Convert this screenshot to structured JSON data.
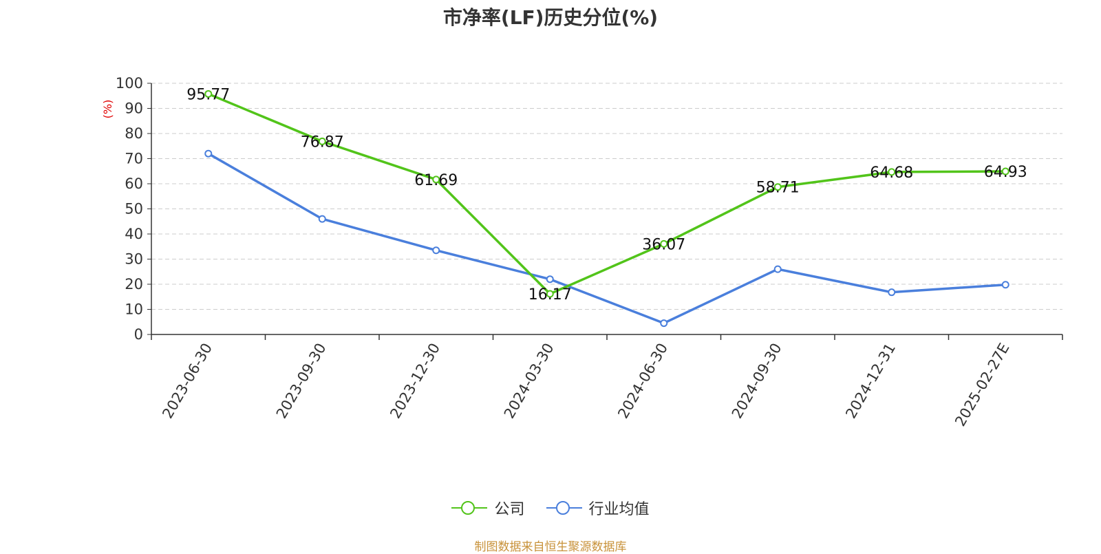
{
  "chart_data": {
    "type": "line",
    "title": "市净率(LF)历史分位(%)",
    "ylabel": "(%)",
    "ylim": [
      0,
      100
    ],
    "yticks": [
      0,
      10,
      20,
      30,
      40,
      50,
      60,
      70,
      80,
      90,
      100
    ],
    "categories": [
      "2023-06-30",
      "2023-09-30",
      "2023-12-30",
      "2024-03-30",
      "2024-06-30",
      "2024-09-30",
      "2024-12-31",
      "2025-02-27E"
    ],
    "series": [
      {
        "name": "公司",
        "color": "#52c41a",
        "values": [
          95.77,
          76.87,
          61.69,
          16.17,
          36.07,
          58.71,
          64.68,
          64.93
        ],
        "labels": [
          "95.77",
          "76.87",
          "61.69",
          "16.17",
          "36.07",
          "58.71",
          "64.68",
          "64.93"
        ]
      },
      {
        "name": "行业均值",
        "color": "#4a7fdc",
        "values": [
          72.0,
          46.0,
          33.5,
          22.0,
          4.5,
          26.0,
          16.8,
          19.8
        ]
      }
    ],
    "grid": true,
    "legend": "bottom"
  },
  "footer": "制图数据来自恒生聚源数据库"
}
